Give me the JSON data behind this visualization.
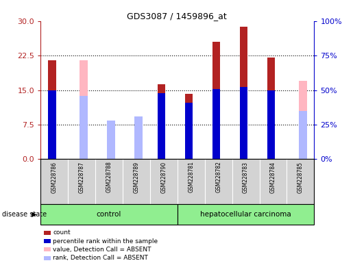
{
  "title": "GDS3087 / 1459896_at",
  "samples": [
    "GSM228786",
    "GSM228787",
    "GSM228788",
    "GSM228789",
    "GSM228790",
    "GSM228781",
    "GSM228782",
    "GSM228783",
    "GSM228784",
    "GSM228785"
  ],
  "groups": [
    "control",
    "control",
    "control",
    "control",
    "control",
    "hepatocellular carcinoma",
    "hepatocellular carcinoma",
    "hepatocellular carcinoma",
    "hepatocellular carcinoma",
    "hepatocellular carcinoma"
  ],
  "count_values": [
    21.5,
    null,
    null,
    null,
    16.2,
    14.2,
    25.5,
    28.7,
    22.0,
    null
  ],
  "percentile_values": [
    50.0,
    null,
    null,
    null,
    48.0,
    41.0,
    51.0,
    52.0,
    50.0,
    null
  ],
  "absent_value_values": [
    null,
    21.5,
    8.0,
    8.5,
    null,
    null,
    null,
    null,
    null,
    17.0
  ],
  "absent_rank_values": [
    null,
    46.0,
    28.0,
    31.0,
    null,
    null,
    null,
    null,
    null,
    35.0
  ],
  "ylim_left": [
    0,
    30
  ],
  "ylim_right": [
    0,
    100
  ],
  "yticks_left": [
    0,
    7.5,
    15,
    22.5,
    30
  ],
  "yticks_right": [
    0,
    25,
    50,
    75,
    100
  ],
  "ytick_labels_right": [
    "0%",
    "25%",
    "50%",
    "75%",
    "100%"
  ],
  "color_count": "#b22222",
  "color_percentile": "#0000cc",
  "color_absent_value": "#ffb6c1",
  "color_absent_rank": "#b0b8ff",
  "bg_color": "#d3d3d3",
  "plot_bg": "#ffffff",
  "group_green": "#90ee90",
  "legend_items": [
    "count",
    "percentile rank within the sample",
    "value, Detection Call = ABSENT",
    "rank, Detection Call = ABSENT"
  ],
  "legend_colors": [
    "#b22222",
    "#0000cc",
    "#ffb6c1",
    "#b0b8ff"
  ]
}
